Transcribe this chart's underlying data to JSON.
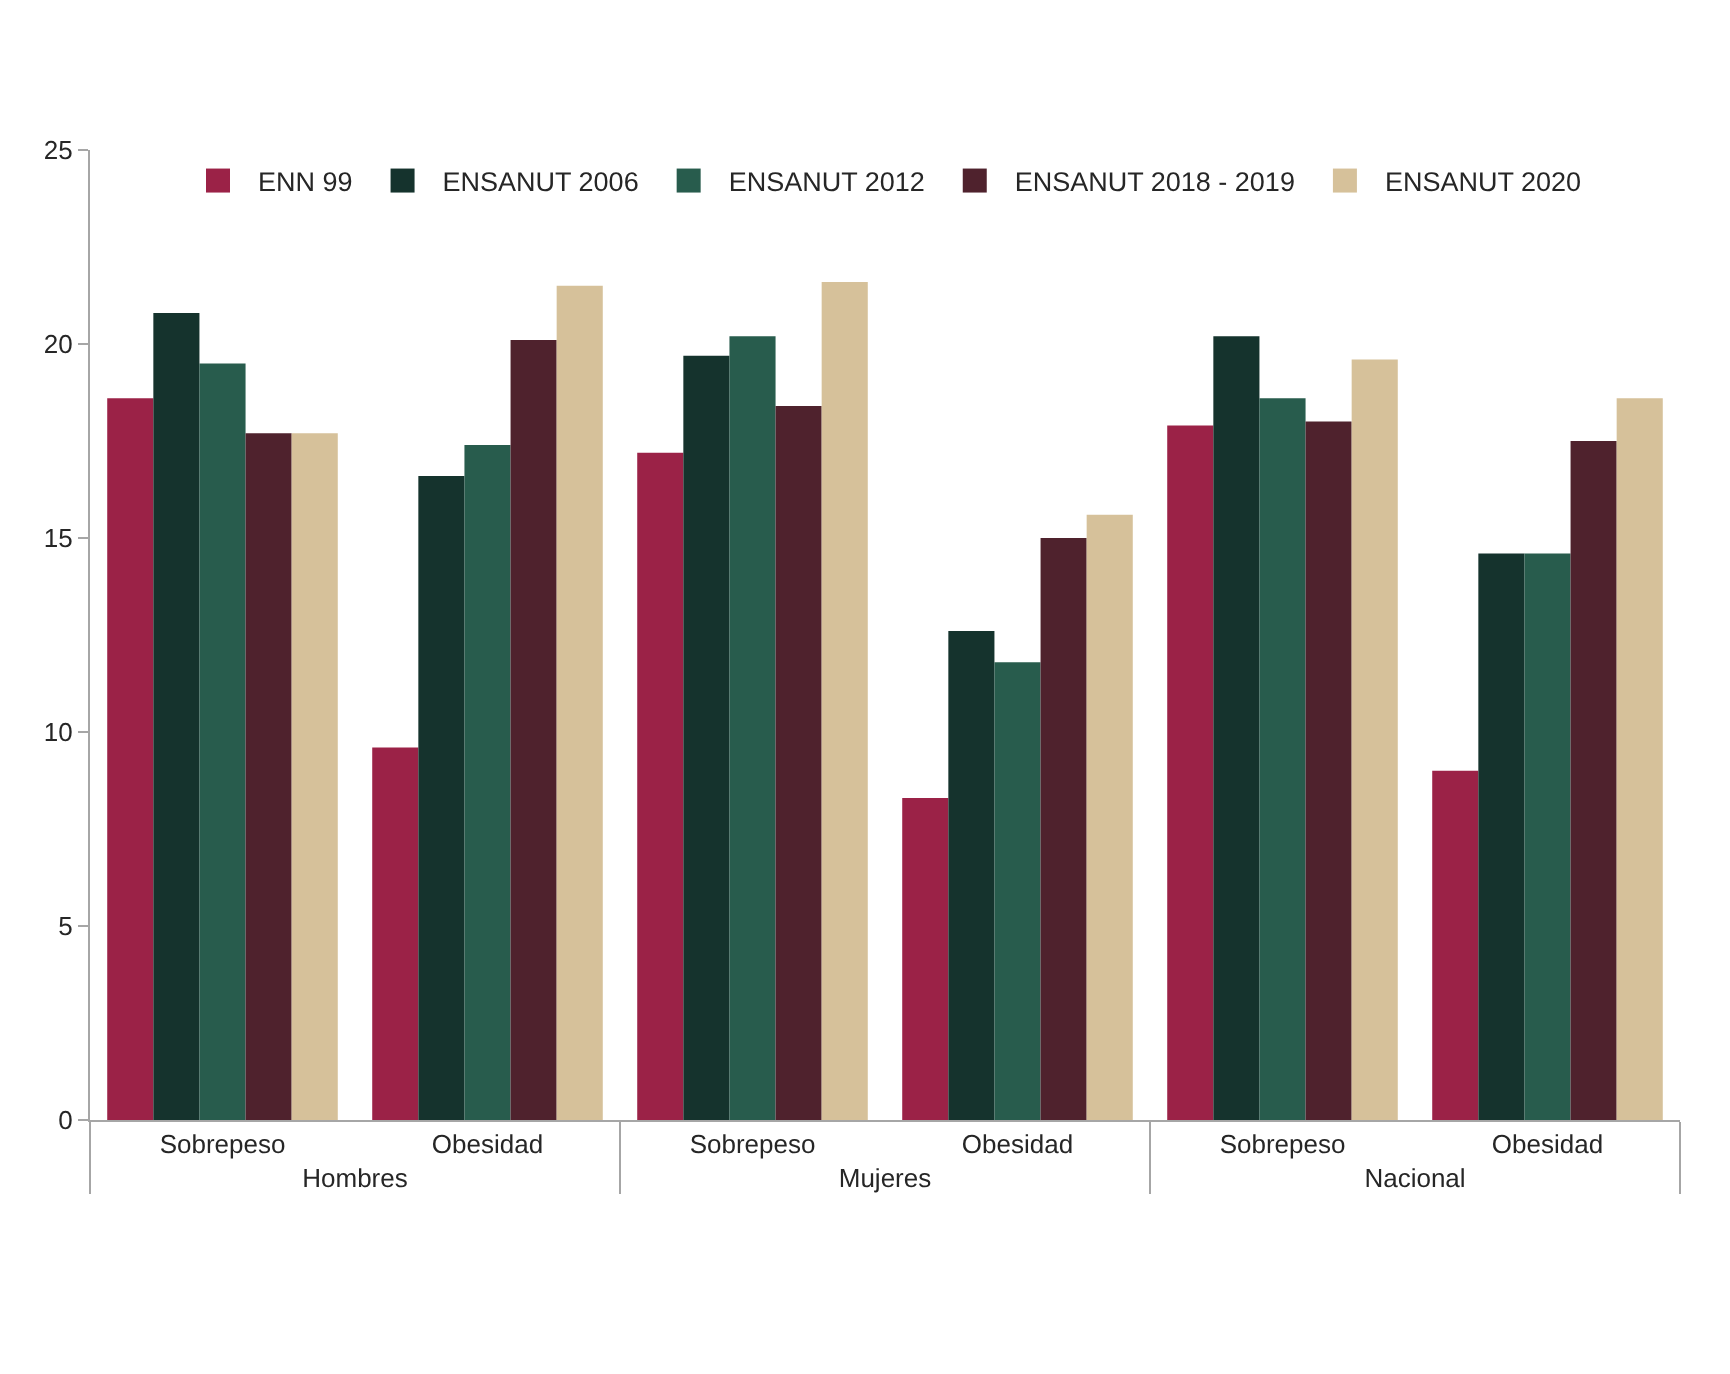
{
  "chart_data": {
    "type": "bar",
    "categories": [
      "Sobrepeso",
      "Obesidad",
      "Sobrepeso",
      "Obesidad",
      "Sobrepeso",
      "Obesidad"
    ],
    "annotations": [
      "Hombres",
      "Mujeres",
      "Nacional"
    ],
    "series": [
      {
        "name": "ENN 99",
        "color": "#9b2247",
        "values": [
          18.6,
          9.6,
          17.2,
          8.3,
          17.9,
          9.0
        ]
      },
      {
        "name": "ENSANUT 2006",
        "color": "#15332d",
        "values": [
          20.8,
          16.6,
          19.7,
          12.6,
          20.2,
          14.6
        ]
      },
      {
        "name": "ENSANUT 2012",
        "color": "#285c4d",
        "values": [
          19.5,
          17.4,
          20.2,
          11.8,
          18.6,
          14.6
        ]
      },
      {
        "name": "ENSANUT 2018 - 2019",
        "color": "#4f222d",
        "values": [
          17.7,
          20.1,
          18.4,
          15.0,
          18.0,
          17.5
        ]
      },
      {
        "name": "ENSANUT 2020",
        "color": "#d6c19a",
        "values": [
          17.7,
          21.5,
          21.6,
          15.6,
          19.6,
          18.6
        ]
      }
    ],
    "ylim": [
      0,
      25
    ],
    "yticks": [
      0,
      5,
      10,
      15,
      20,
      25
    ],
    "legend": "top"
  }
}
